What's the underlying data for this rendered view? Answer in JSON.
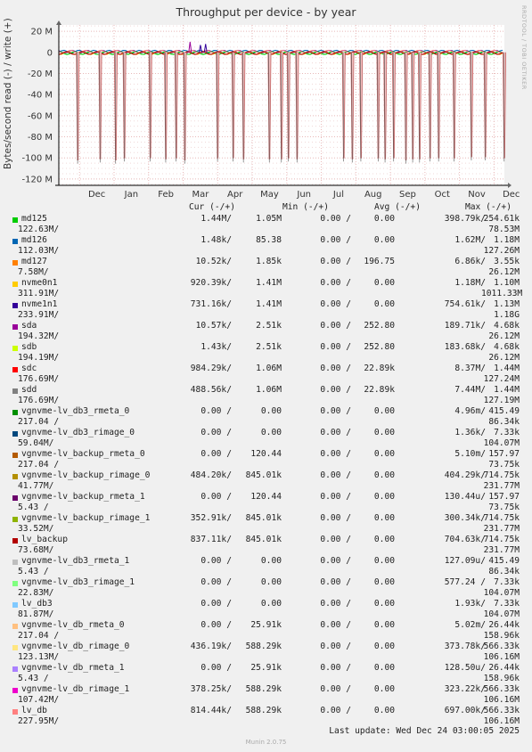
{
  "title": "Throughput per device - by year",
  "side_label": "RRDTOOL / TOBI OETIKER",
  "footer": {
    "last_update": "Last update: Wed Dec 24 03:00:05 2025",
    "version": "Munin 2.0.75"
  },
  "legend_headers": {
    "cur": "Cur (-/+)",
    "min": "Min (-/+)",
    "avg": "Avg (-/+)",
    "max": "Max (-/+)"
  },
  "chart_data": {
    "type": "line",
    "ylabel": "Bytes/second read (-) / write (+)",
    "y_ticks": [
      "20 M",
      "0",
      "-20 M",
      "-40 M",
      "-60 M",
      "-80 M",
      "-100 M",
      "-120 M"
    ],
    "ylim": [
      -126,
      26
    ],
    "x_ticks": [
      "Dec",
      "Jan",
      "Feb",
      "Mar",
      "Apr",
      "May",
      "Jun",
      "Jul",
      "Aug",
      "Sep",
      "Oct",
      "Nov",
      "Dec"
    ],
    "read_spikes_month_position": [
      0.55,
      1.2,
      1.65,
      1.9,
      2.65,
      3.1,
      3.4,
      3.65,
      4.6,
      5.05,
      5.35,
      6.1,
      6.45,
      6.65,
      6.9,
      8.25,
      8.5,
      8.75,
      9.25,
      9.45,
      9.7,
      10.05,
      10.25,
      10.45,
      10.75,
      11.0,
      11.45,
      11.95,
      12.35,
      12.9,
      13.85
    ],
    "read_spike_values_M": [
      -102,
      -101,
      -102,
      -100,
      -100,
      -101,
      -100,
      -102,
      -100,
      -100,
      -101,
      -101,
      -101,
      -100,
      -101,
      -100,
      -101,
      -100,
      -100,
      -101,
      -100,
      -102,
      -101,
      -101,
      -100,
      -100,
      -100,
      -99,
      -99,
      -100,
      -101
    ],
    "write_spikes_month_position": [
      3.8,
      4.1,
      4.25
    ],
    "write_spike_values_M": [
      10,
      7,
      8
    ],
    "grid": true,
    "series": [
      {
        "name": "md125",
        "color": "#00cc00",
        "cur": "1.44M/",
        "min": "1.05M",
        "minr": "0.00 /",
        "avgr": "0.00",
        "avg": "398.79k/",
        "max": "254.61k",
        "line2": "122.63M/",
        "max2": "78.53M"
      },
      {
        "name": "md126",
        "color": "#0066b3",
        "cur": "1.48k/",
        "min": "85.38",
        "minr": "0.00 /",
        "avgr": "0.00",
        "avg": "1.62M/",
        "max": "1.18M",
        "line2": "112.03M/",
        "max2": "127.26M"
      },
      {
        "name": "md127",
        "color": "#ff8000",
        "cur": "10.52k/",
        "min": "1.85k",
        "minr": "0.00 /",
        "avgr": "196.75",
        "avg": "6.86k/",
        "max": "3.55k",
        "line2": "7.58M/",
        "max2": "26.12M"
      },
      {
        "name": "nvme0n1",
        "color": "#ffcc00",
        "cur": "920.39k/",
        "min": "1.41M",
        "minr": "0.00 /",
        "avgr": "0.00",
        "avg": "1.18M/",
        "max": "1.10M",
        "line2": "311.91M/",
        "max2": "1011.33M"
      },
      {
        "name": "nvme1n1",
        "color": "#330099",
        "cur": "731.16k/",
        "min": "1.41M",
        "minr": "0.00 /",
        "avgr": "0.00",
        "avg": "754.61k/",
        "max": "1.13M",
        "line2": "233.91M/",
        "max2": "1.18G"
      },
      {
        "name": "sda",
        "color": "#990099",
        "cur": "10.57k/",
        "min": "2.51k",
        "minr": "0.00 /",
        "avgr": "252.80",
        "avg": "189.71k/",
        "max": "4.68k",
        "line2": "194.32M/",
        "max2": "26.12M"
      },
      {
        "name": "sdb",
        "color": "#ccff00",
        "cur": "1.43k/",
        "min": "2.51k",
        "minr": "0.00 /",
        "avgr": "252.80",
        "avg": "183.68k/",
        "max": "4.68k",
        "line2": "194.19M/",
        "max2": "26.12M"
      },
      {
        "name": "sdc",
        "color": "#ff0000",
        "cur": "984.29k/",
        "min": "1.06M",
        "minr": "0.00 /",
        "avgr": "22.89k",
        "avg": "8.37M/",
        "max": "1.44M",
        "line2": "176.69M/",
        "max2": "127.24M"
      },
      {
        "name": "sdd",
        "color": "#808080",
        "cur": "488.56k/",
        "min": "1.06M",
        "minr": "0.00 /",
        "avgr": "22.89k",
        "avg": "7.44M/",
        "max": "1.44M",
        "line2": "176.69M/",
        "max2": "127.19M"
      },
      {
        "name": "vgnvme-lv_db3_rmeta_0",
        "color": "#008f00",
        "cur": "0.00 /",
        "min": "0.00",
        "minr": "0.00 /",
        "avgr": "0.00",
        "avg": "4.96m/",
        "max": "415.49",
        "line2": "217.04 /",
        "max2": "86.34k"
      },
      {
        "name": "vgnvme-lv_db3_rimage_0",
        "color": "#00487d",
        "cur": "0.00 /",
        "min": "0.00",
        "minr": "0.00 /",
        "avgr": "0.00",
        "avg": "1.36k/",
        "max": "7.33k",
        "line2": "59.04M/",
        "max2": "104.07M"
      },
      {
        "name": "vgnvme-lv_backup_rmeta_0",
        "color": "#b35a00",
        "cur": "0.00 /",
        "min": "120.44",
        "minr": "0.00 /",
        "avgr": "0.00",
        "avg": "5.10m/",
        "max": "157.97",
        "line2": "217.04 /",
        "max2": "73.75k"
      },
      {
        "name": "vgnvme-lv_backup_rimage_0",
        "color": "#b38f00",
        "cur": "484.20k/",
        "min": "845.01k",
        "minr": "0.00 /",
        "avgr": "0.00",
        "avg": "404.29k/",
        "max": "714.75k",
        "line2": "41.77M/",
        "max2": "231.77M"
      },
      {
        "name": "vgnvme-lv_backup_rmeta_1",
        "color": "#6b006b",
        "cur": "0.00 /",
        "min": "120.44",
        "minr": "0.00 /",
        "avgr": "0.00",
        "avg": "130.44u/",
        "max": "157.97",
        "line2": "5.43 /",
        "max2": "73.75k"
      },
      {
        "name": "vgnvme-lv_backup_rimage_1",
        "color": "#8fb300",
        "cur": "352.91k/",
        "min": "845.01k",
        "minr": "0.00 /",
        "avgr": "0.00",
        "avg": "300.34k/",
        "max": "714.75k",
        "line2": "33.52M/",
        "max2": "231.77M"
      },
      {
        "name": "lv_backup",
        "color": "#b30000",
        "cur": "837.11k/",
        "min": "845.01k",
        "minr": "0.00 /",
        "avgr": "0.00",
        "avg": "704.63k/",
        "max": "714.75k",
        "line2": "73.68M/",
        "max2": "231.77M"
      },
      {
        "name": "vgnvme-lv_db3_rmeta_1",
        "color": "#bebebe",
        "cur": "0.00 /",
        "min": "0.00",
        "minr": "0.00 /",
        "avgr": "0.00",
        "avg": "127.09u/",
        "max": "415.49",
        "line2": "5.43 /",
        "max2": "86.34k"
      },
      {
        "name": "vgnvme-lv_db3_rimage_1",
        "color": "#80ff80",
        "cur": "0.00 /",
        "min": "0.00",
        "minr": "0.00 /",
        "avgr": "0.00",
        "avg": "577.24 /",
        "max": "7.33k",
        "line2": "22.83M/",
        "max2": "104.07M"
      },
      {
        "name": "lv_db3",
        "color": "#80c9ff",
        "cur": "0.00 /",
        "min": "0.00",
        "minr": "0.00 /",
        "avgr": "0.00",
        "avg": "1.93k/",
        "max": "7.33k",
        "line2": "81.87M/",
        "max2": "104.07M"
      },
      {
        "name": "vgnvme-lv_db_rmeta_0",
        "color": "#ffc080",
        "cur": "0.00 /",
        "min": "25.91k",
        "minr": "0.00 /",
        "avgr": "0.00",
        "avg": "5.02m/",
        "max": "26.44k",
        "line2": "217.04 /",
        "max2": "158.96k"
      },
      {
        "name": "vgnvme-lv_db_rimage_0",
        "color": "#ffe680",
        "cur": "436.19k/",
        "min": "588.29k",
        "minr": "0.00 /",
        "avgr": "0.00",
        "avg": "373.78k/",
        "max": "566.33k",
        "line2": "123.13M/",
        "max2": "106.16M"
      },
      {
        "name": "vgnvme-lv_db_rmeta_1",
        "color": "#aa80ff",
        "cur": "0.00 /",
        "min": "25.91k",
        "minr": "0.00 /",
        "avgr": "0.00",
        "avg": "128.50u/",
        "max": "26.44k",
        "line2": "5.43 /",
        "max2": "158.96k"
      },
      {
        "name": "vgnvme-lv_db_rimage_1",
        "color": "#ee00cc",
        "cur": "378.25k/",
        "min": "588.29k",
        "minr": "0.00 /",
        "avgr": "0.00",
        "avg": "323.22k/",
        "max": "566.33k",
        "line2": "107.42M/",
        "max2": "106.16M"
      },
      {
        "name": "lv_db",
        "color": "#ff8080",
        "cur": "814.44k/",
        "min": "588.29k",
        "minr": "0.00 /",
        "avgr": "0.00",
        "avg": "697.00k/",
        "max": "566.33k",
        "line2": "227.95M/",
        "max2": "106.16M"
      }
    ]
  }
}
